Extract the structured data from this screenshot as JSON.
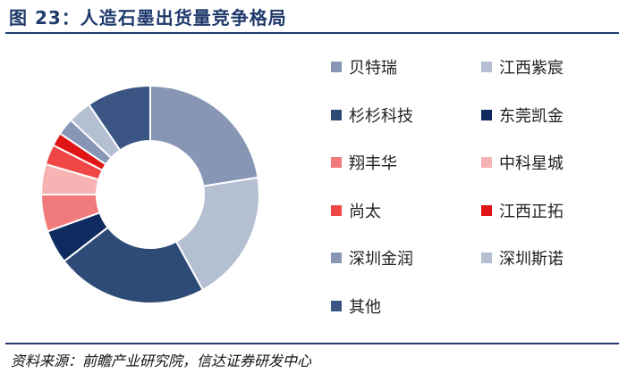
{
  "figure": {
    "title": "图 23：人造石墨出货量竞争格局",
    "source": "资料来源：前瞻产业研究院，信达证券研发中心"
  },
  "chart_data": {
    "type": "pie",
    "variant": "donut",
    "legend_position": "right",
    "categories": [
      "贝特瑞",
      "江西紫宸",
      "杉杉科技",
      "东莞凯金",
      "翔丰华",
      "中科星城",
      "尚太",
      "江西正拓",
      "深圳金润",
      "深圳斯诺",
      "其他"
    ],
    "values": [
      22.5,
      19.5,
      22.5,
      5.0,
      5.5,
      4.5,
      3.0,
      2.0,
      2.5,
      3.5,
      9.5
    ],
    "colors": [
      "#8696b4",
      "#b4bfd2",
      "#2e4a76",
      "#0e2a5e",
      "#f07a7c",
      "#f7b3b3",
      "#f04646",
      "#e01616",
      "#8696b4",
      "#b4bfd2",
      "#3a5583"
    ]
  }
}
